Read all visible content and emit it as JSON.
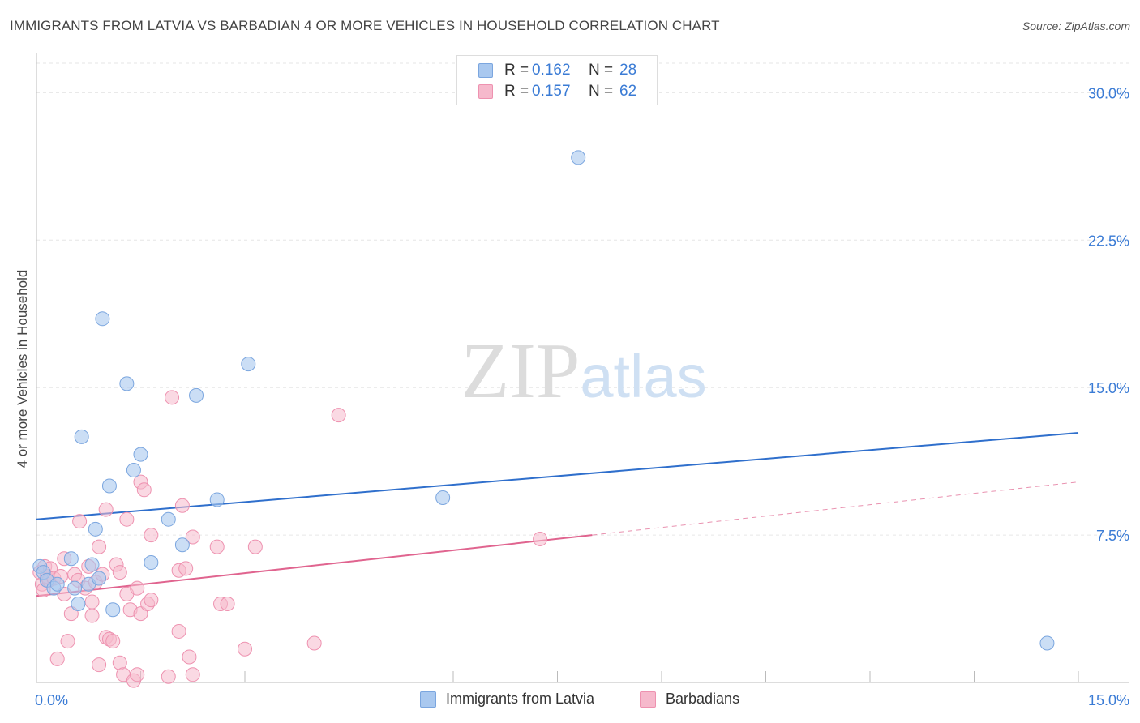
{
  "chart_data": {
    "type": "scatter",
    "title": "IMMIGRANTS FROM LATVIA VS BARBADIAN 4 OR MORE VEHICLES IN HOUSEHOLD CORRELATION CHART",
    "source": "Source: ZipAtlas.com",
    "ylabel": "4 or more Vehicles in Household",
    "xlabel": "",
    "xlim": [
      0,
      15
    ],
    "ylim": [
      0,
      31.5
    ],
    "x_tick_labels": [
      "0.0%",
      "15.0%"
    ],
    "y_ticks": [
      7.5,
      15,
      22.5,
      30
    ],
    "y_tick_labels": [
      "7.5%",
      "15.0%",
      "22.5%",
      "30.0%"
    ],
    "grid": true,
    "legend": [
      {
        "label": "Immigrants from Latvia",
        "r_label": "R =",
        "r": "0.162",
        "n_label": "N =",
        "n": "28"
      },
      {
        "label": "Barbadians",
        "r_label": "R =",
        "r": "0.157",
        "n_label": "N =",
        "n": "62"
      }
    ],
    "colors": {
      "latvia_fill": "#a9c8ef",
      "latvia_stroke": "#7ba6df",
      "latvia_line": "#2f6fcc",
      "barbadian_fill": "#f6b9cc",
      "barbadian_stroke": "#ee92b0",
      "barbadian_line": "#e0648f",
      "value_text": "#3a7bd5"
    },
    "watermark": "ZIPatlas",
    "series": [
      {
        "name": "Immigrants from Latvia",
        "points": [
          [
            0.05,
            5.9
          ],
          [
            0.1,
            5.6
          ],
          [
            0.15,
            5.2
          ],
          [
            0.25,
            4.8
          ],
          [
            0.3,
            5.0
          ],
          [
            0.5,
            6.3
          ],
          [
            0.55,
            4.8
          ],
          [
            0.6,
            4.0
          ],
          [
            0.65,
            12.5
          ],
          [
            0.75,
            5.0
          ],
          [
            0.8,
            6.0
          ],
          [
            0.85,
            7.8
          ],
          [
            0.9,
            5.3
          ],
          [
            0.95,
            18.5
          ],
          [
            1.05,
            10.0
          ],
          [
            1.1,
            3.7
          ],
          [
            1.3,
            15.2
          ],
          [
            1.4,
            10.8
          ],
          [
            1.5,
            11.6
          ],
          [
            1.65,
            6.1
          ],
          [
            1.9,
            8.3
          ],
          [
            2.1,
            7.0
          ],
          [
            2.3,
            14.6
          ],
          [
            2.6,
            9.3
          ],
          [
            3.05,
            16.2
          ],
          [
            5.85,
            9.4
          ],
          [
            7.8,
            26.7
          ],
          [
            14.55,
            2.0
          ]
        ],
        "trend": {
          "x": [
            0,
            15
          ],
          "y": [
            8.3,
            12.7
          ]
        }
      },
      {
        "name": "Barbadians",
        "points": [
          [
            0.05,
            5.6
          ],
          [
            0.08,
            5.0
          ],
          [
            0.1,
            4.7
          ],
          [
            0.12,
            5.9
          ],
          [
            0.15,
            5.4
          ],
          [
            0.18,
            5.2
          ],
          [
            0.2,
            5.8
          ],
          [
            0.25,
            5.3
          ],
          [
            0.3,
            1.2
          ],
          [
            0.35,
            5.4
          ],
          [
            0.4,
            4.5
          ],
          [
            0.4,
            6.3
          ],
          [
            0.45,
            2.1
          ],
          [
            0.5,
            3.5
          ],
          [
            0.55,
            5.5
          ],
          [
            0.6,
            5.2
          ],
          [
            0.62,
            8.2
          ],
          [
            0.7,
            4.8
          ],
          [
            0.75,
            5.9
          ],
          [
            0.8,
            4.1
          ],
          [
            0.8,
            3.4
          ],
          [
            0.85,
            5.1
          ],
          [
            0.9,
            6.9
          ],
          [
            0.9,
            0.9
          ],
          [
            0.95,
            5.5
          ],
          [
            1.0,
            2.3
          ],
          [
            1.0,
            8.8
          ],
          [
            1.05,
            2.2
          ],
          [
            1.1,
            2.1
          ],
          [
            1.15,
            6.0
          ],
          [
            1.2,
            1.0
          ],
          [
            1.2,
            5.6
          ],
          [
            1.25,
            0.4
          ],
          [
            1.3,
            4.5
          ],
          [
            1.3,
            8.3
          ],
          [
            1.35,
            3.7
          ],
          [
            1.4,
            0.1
          ],
          [
            1.45,
            0.4
          ],
          [
            1.45,
            4.8
          ],
          [
            1.5,
            10.2
          ],
          [
            1.5,
            3.5
          ],
          [
            1.55,
            9.8
          ],
          [
            1.6,
            4.0
          ],
          [
            1.65,
            4.2
          ],
          [
            1.65,
            7.5
          ],
          [
            1.9,
            0.3
          ],
          [
            1.95,
            14.5
          ],
          [
            2.05,
            2.6
          ],
          [
            2.05,
            5.7
          ],
          [
            2.1,
            9.0
          ],
          [
            2.15,
            5.8
          ],
          [
            2.2,
            1.3
          ],
          [
            2.25,
            0.4
          ],
          [
            2.25,
            7.4
          ],
          [
            2.6,
            6.9
          ],
          [
            2.65,
            4.0
          ],
          [
            2.75,
            4.0
          ],
          [
            3.0,
            1.7
          ],
          [
            3.15,
            6.9
          ],
          [
            4.0,
            2.0
          ],
          [
            4.35,
            13.6
          ],
          [
            7.25,
            7.3
          ]
        ],
        "trend": {
          "x": [
            0,
            8.0
          ],
          "y": [
            4.4,
            7.5
          ]
        },
        "trend_extension": {
          "x": [
            8.0,
            15
          ],
          "y": [
            7.5,
            10.2
          ]
        }
      }
    ]
  }
}
